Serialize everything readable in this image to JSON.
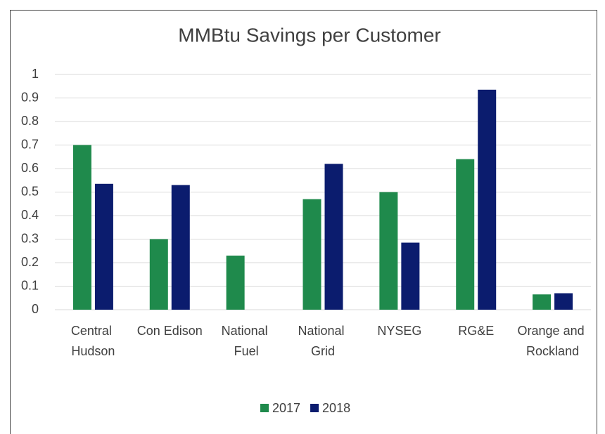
{
  "chart_data": {
    "type": "bar",
    "title": "MMBtu Savings per Customer",
    "categories": [
      "Central Hudson",
      "Con Edison",
      "National Fuel",
      "National Grid",
      "NYSEG",
      "RG&E",
      "Orange and Rockland"
    ],
    "series": [
      {
        "name": "2017",
        "color": "#1f8a4c",
        "values": [
          0.7,
          0.3,
          0.23,
          0.47,
          0.5,
          0.64,
          0.065
        ]
      },
      {
        "name": "2018",
        "color": "#0b1c6e",
        "values": [
          0.535,
          0.53,
          null,
          0.62,
          0.285,
          0.935,
          0.07
        ]
      }
    ],
    "ylim": [
      0,
      1
    ],
    "yticks": [
      0,
      0.1,
      0.2,
      0.3,
      0.4,
      0.5,
      0.6,
      0.7,
      0.8,
      0.9,
      1
    ],
    "grid": true,
    "legend": "bottom"
  }
}
